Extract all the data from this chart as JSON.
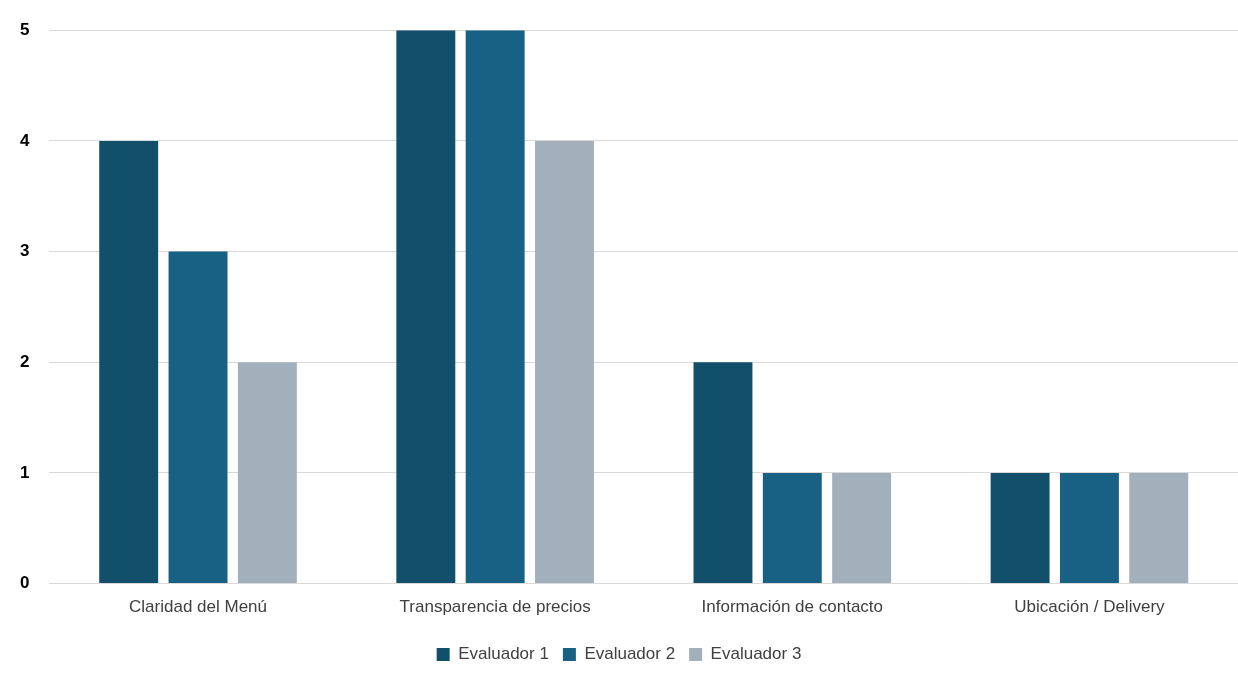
{
  "chart_data": {
    "type": "bar",
    "categories": [
      "Claridad del Menú",
      "Transparencia de precios",
      "Información de contacto",
      "Ubicación / Delivery"
    ],
    "series": [
      {
        "name": "Evaluador 1",
        "color": "#124f6b",
        "values": [
          4,
          5,
          2,
          1
        ]
      },
      {
        "name": "Evaluador 2",
        "color": "#186184",
        "values": [
          3,
          5,
          1,
          1
        ]
      },
      {
        "name": "Evaluador 3",
        "color": "#a2b0bb",
        "values": [
          2,
          4,
          1,
          1
        ]
      }
    ],
    "ylim": [
      0,
      5
    ],
    "yticks": [
      0,
      1,
      2,
      3,
      4,
      5
    ],
    "grid": "y",
    "legend": "bottom"
  }
}
